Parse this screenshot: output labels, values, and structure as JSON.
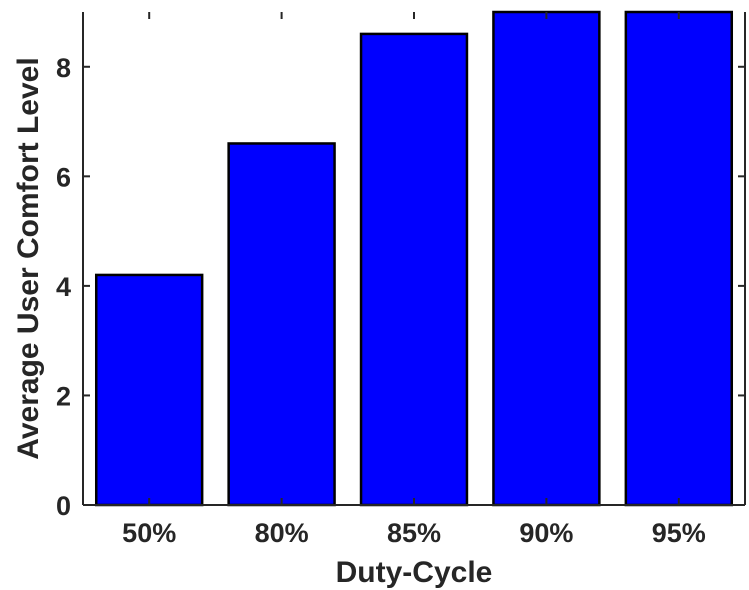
{
  "chart_data": {
    "type": "bar",
    "title": "",
    "xlabel": "Duty-Cycle",
    "ylabel": "Average User Comfort Level",
    "categories": [
      "50%",
      "80%",
      "85%",
      "90%",
      "95%"
    ],
    "values": [
      4.2,
      6.6,
      8.6,
      9.0,
      9.0
    ],
    "ylim": [
      0,
      9
    ],
    "yticks": [
      0,
      2,
      4,
      6,
      8
    ],
    "grid": false,
    "bar_color": "#0000ff",
    "bar_edge_color": "#000000"
  }
}
